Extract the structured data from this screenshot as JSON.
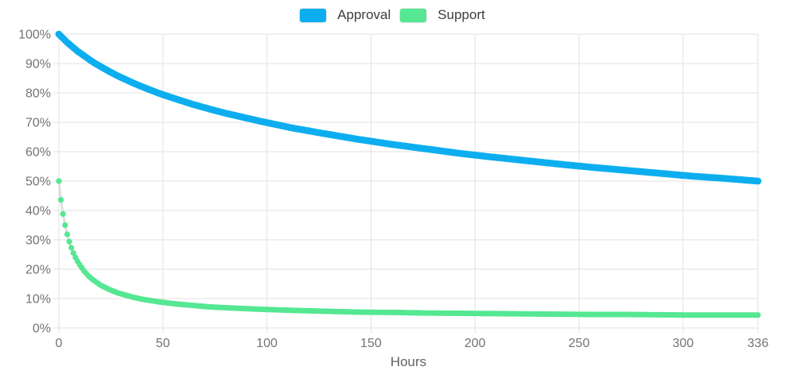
{
  "chart_data": {
    "type": "scatter",
    "title": "",
    "xlabel": "Hours",
    "ylabel": "",
    "xlim": [
      0,
      336
    ],
    "ylim": [
      0,
      100
    ],
    "xticks": [
      0,
      50,
      100,
      150,
      200,
      250,
      300,
      336
    ],
    "yticks": [
      0,
      10,
      20,
      30,
      40,
      50,
      60,
      70,
      80,
      90,
      100
    ],
    "ytick_labels": [
      "0%",
      "10%",
      "20%",
      "30%",
      "40%",
      "50%",
      "60%",
      "70%",
      "80%",
      "90%",
      "100%"
    ],
    "grid": true,
    "legend_position": "top-center",
    "point_interval_hours": 1,
    "grid_color": "#e2e2e2",
    "connector_color": "#dedede",
    "x": [
      0,
      1,
      2,
      3,
      4,
      5,
      6,
      7,
      8,
      9,
      10,
      12,
      14,
      16,
      18,
      20,
      24,
      28,
      32,
      36,
      40,
      48,
      56,
      64,
      72,
      80,
      96,
      112,
      128,
      144,
      160,
      176,
      192,
      208,
      224,
      240,
      256,
      272,
      288,
      304,
      320,
      336
    ],
    "series": [
      {
        "name": "Approval",
        "color": "#0daeef",
        "dot_radius": 4.4,
        "values": [
          100,
          99.3,
          98.6,
          97.9,
          97.2,
          96.6,
          96,
          95.4,
          94.8,
          94.2,
          93.7,
          92.7,
          91.7,
          90.7,
          89.8,
          89,
          87.4,
          85.9,
          84.6,
          83.3,
          82.1,
          79.9,
          78,
          76.2,
          74.6,
          73.1,
          70.5,
          68.1,
          66.1,
          64.2,
          62.5,
          61,
          59.5,
          58.2,
          57,
          55.8,
          54.7,
          53.7,
          52.7,
          51.7,
          50.9,
          50
        ]
      },
      {
        "name": "Support",
        "color": "#55e792",
        "dot_radius": 3.6,
        "values": [
          50,
          43.6,
          38.8,
          35,
          31.9,
          29.4,
          27.3,
          25.5,
          24,
          22.7,
          21.5,
          19.5,
          17.9,
          16.6,
          15.6,
          14.6,
          13.2,
          12,
          11.2,
          10.4,
          9.8,
          8.9,
          8.2,
          7.7,
          7.2,
          6.9,
          6.4,
          6,
          5.7,
          5.4,
          5.3,
          5.1,
          5,
          4.9,
          4.8,
          4.7,
          4.6,
          4.6,
          4.5,
          4.4,
          4.4,
          4.4
        ]
      }
    ]
  }
}
